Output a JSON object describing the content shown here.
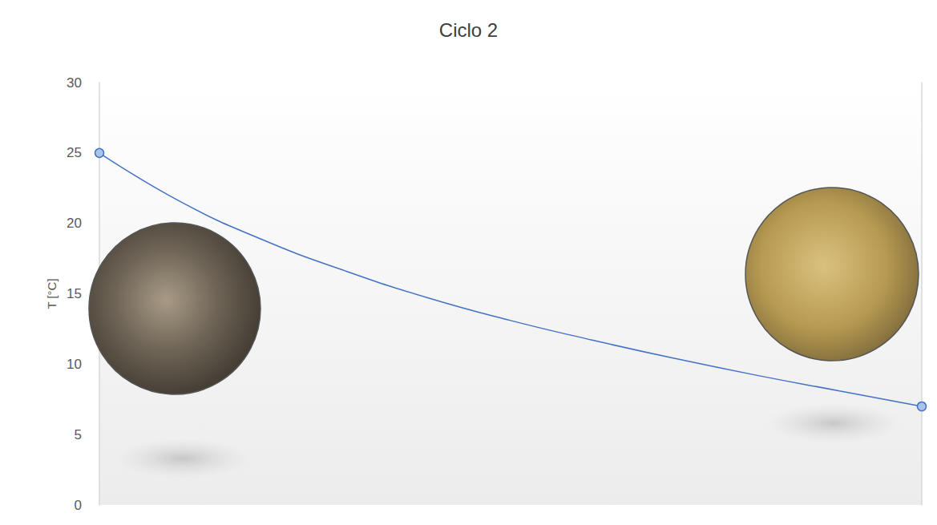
{
  "chart_data": {
    "type": "line",
    "title": "Ciclo 2",
    "y_label": "T [°C]",
    "categories": [
      null,
      null,
      null,
      null,
      null,
      null,
      null,
      null,
      null,
      null,
      null
    ],
    "series": [
      {
        "values": [
          25,
          21.5,
          18.8,
          16.6,
          14.7,
          13.1,
          11.7,
          10.4,
          9.2,
          8.1,
          7
        ],
        "color": "#4472c4",
        "marker": "none",
        "line_style": "solid"
      },
      {
        "values": [
          25,
          null,
          null,
          null,
          null,
          null,
          null,
          null,
          null,
          null,
          7
        ],
        "color": "#4472c4",
        "marker": "circle",
        "line_style": "none"
      }
    ],
    "ylim": [
      0,
      30
    ],
    "yticks": [
      0,
      5,
      10,
      15,
      20,
      25,
      30
    ],
    "grid": false,
    "tick_labels": "y"
  }
}
